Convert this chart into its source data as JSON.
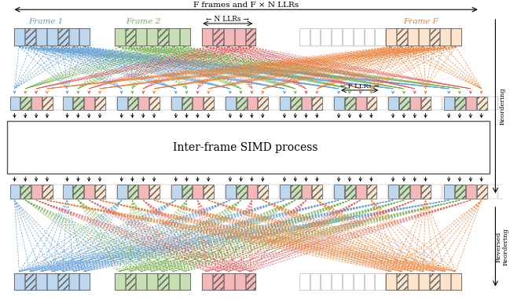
{
  "title_top": "F frames and F × N LLRs",
  "label_frame1": "Frame 1",
  "label_frame2": "Frame 2",
  "label_frameF": "Frame F",
  "label_nllrs": "← N LLRs →",
  "label_fllrs": "← F LLRs →",
  "label_simd": "Inter-frame SIMD process",
  "label_reordering": "Reordering",
  "label_rev_reordering": "Reversed\nReordering",
  "c_blue": "#5b9bd5",
  "c_green": "#70ad47",
  "c_red": "#e05050",
  "c_orange": "#ed7d31",
  "c_lb": "#bdd7ee",
  "c_lg": "#c6e0b4",
  "c_pink": "#f4b8b8",
  "c_lo": "#fce4cc",
  "fig_width": 6.49,
  "fig_height": 3.82
}
